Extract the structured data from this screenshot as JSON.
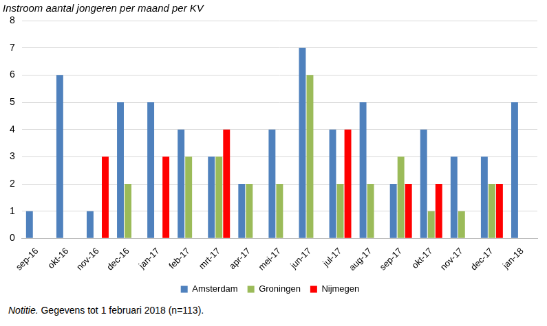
{
  "chart_data": {
    "type": "bar",
    "title": "Instroom aantal jongeren per maand per KV",
    "note": "Notitie. Gegevens tot 1 februari 2018 (n=113).",
    "categories": [
      "sep-16",
      "okt-16",
      "nov-16",
      "dec-16",
      "jan-17",
      "feb-17",
      "mrt-17",
      "apr-17",
      "mei-17",
      "jun-17",
      "jul-17",
      "aug-17",
      "sep-17",
      "okt-17",
      "nov-17",
      "dec-17",
      "jan-18"
    ],
    "series": [
      {
        "name": "Amsterdam",
        "color": "#4f81bd",
        "values": [
          1,
          6,
          1,
          5,
          5,
          4,
          3,
          2,
          4,
          7,
          4,
          5,
          2,
          4,
          3,
          3,
          5
        ]
      },
      {
        "name": "Groningen",
        "color": "#9bbb59",
        "values": [
          0,
          0,
          0,
          2,
          0,
          3,
          3,
          2,
          2,
          6,
          2,
          2,
          3,
          1,
          1,
          2,
          0
        ]
      },
      {
        "name": "Nijmegen",
        "color": "#ff0000",
        "values": [
          0,
          0,
          3,
          0,
          3,
          0,
          4,
          0,
          0,
          0,
          4,
          0,
          2,
          2,
          0,
          2,
          0
        ]
      }
    ],
    "ylim": [
      0,
      8
    ],
    "yticks": [
      0,
      1,
      2,
      3,
      4,
      5,
      6,
      7,
      8
    ],
    "grid": true,
    "legend": "bottom"
  }
}
